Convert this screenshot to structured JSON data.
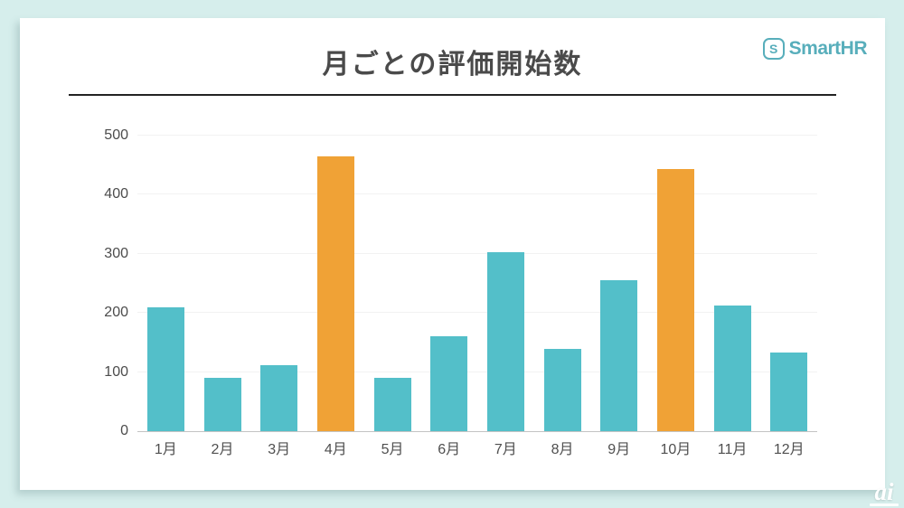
{
  "page": {
    "background_color": "#d6eeec",
    "card_color": "#ffffff"
  },
  "header": {
    "title": "月ごとの評価開始数",
    "brand_icon_letter": "S",
    "brand_name": "SmartHR",
    "brand_color": "#58aebb"
  },
  "watermark": {
    "text": "ai"
  },
  "chart_data": {
    "type": "bar",
    "title": "月ごとの評価開始数",
    "categories": [
      "1月",
      "2月",
      "3月",
      "4月",
      "5月",
      "6月",
      "7月",
      "8月",
      "9月",
      "10月",
      "11月",
      "12月"
    ],
    "values": [
      210,
      90,
      112,
      465,
      90,
      161,
      303,
      139,
      255,
      443,
      213,
      133
    ],
    "highlighted_categories": [
      "4月",
      "10月"
    ],
    "bar_color": "#53bfc9",
    "highlight_color": "#f0a236",
    "xlabel": "",
    "ylabel": "",
    "ylim": [
      0,
      500
    ],
    "yticks": [
      0,
      100,
      200,
      300,
      400,
      500
    ],
    "grid": true,
    "legend": false,
    "gridline_color": "#f2f2f2",
    "axis_line_color": "#c4c4c4",
    "tick_label_color": "#4c4c4c"
  }
}
